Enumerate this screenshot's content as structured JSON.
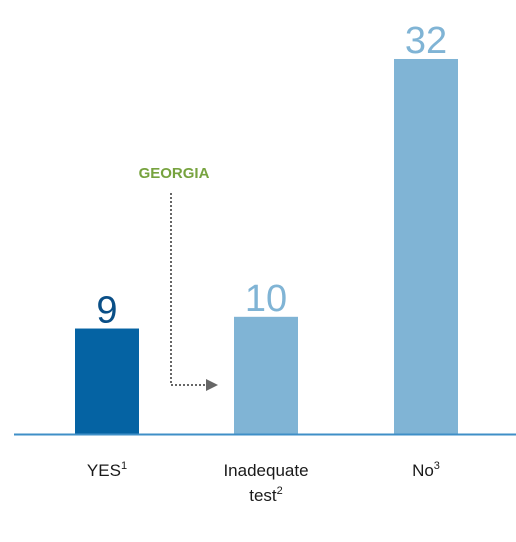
{
  "chart_data": {
    "type": "bar",
    "title": "",
    "xlabel": "",
    "ylabel": "",
    "ylim": [
      0,
      32
    ],
    "grid": false,
    "legend": "none",
    "categories": [
      {
        "lines": [
          "YES"
        ],
        "sup": "1"
      },
      {
        "lines": [
          "Inadequate",
          "test"
        ],
        "sup": "2"
      },
      {
        "lines": [
          "No"
        ],
        "sup": "3"
      }
    ],
    "values": [
      9,
      10,
      32
    ],
    "value_labels": [
      "9",
      "10",
      "32"
    ],
    "bar_colors": [
      "#0563a3",
      "#80b4d5",
      "#80b4d5"
    ],
    "value_label_colors": [
      "#0a4f87",
      "#80b4d5",
      "#80b4d5"
    ],
    "annotation": {
      "label": "GEORGIA",
      "color": "#77a33f",
      "arrow_color": "#666666",
      "from_category": 0,
      "to_category": 1
    },
    "axis_color": "#3f8fc7"
  }
}
